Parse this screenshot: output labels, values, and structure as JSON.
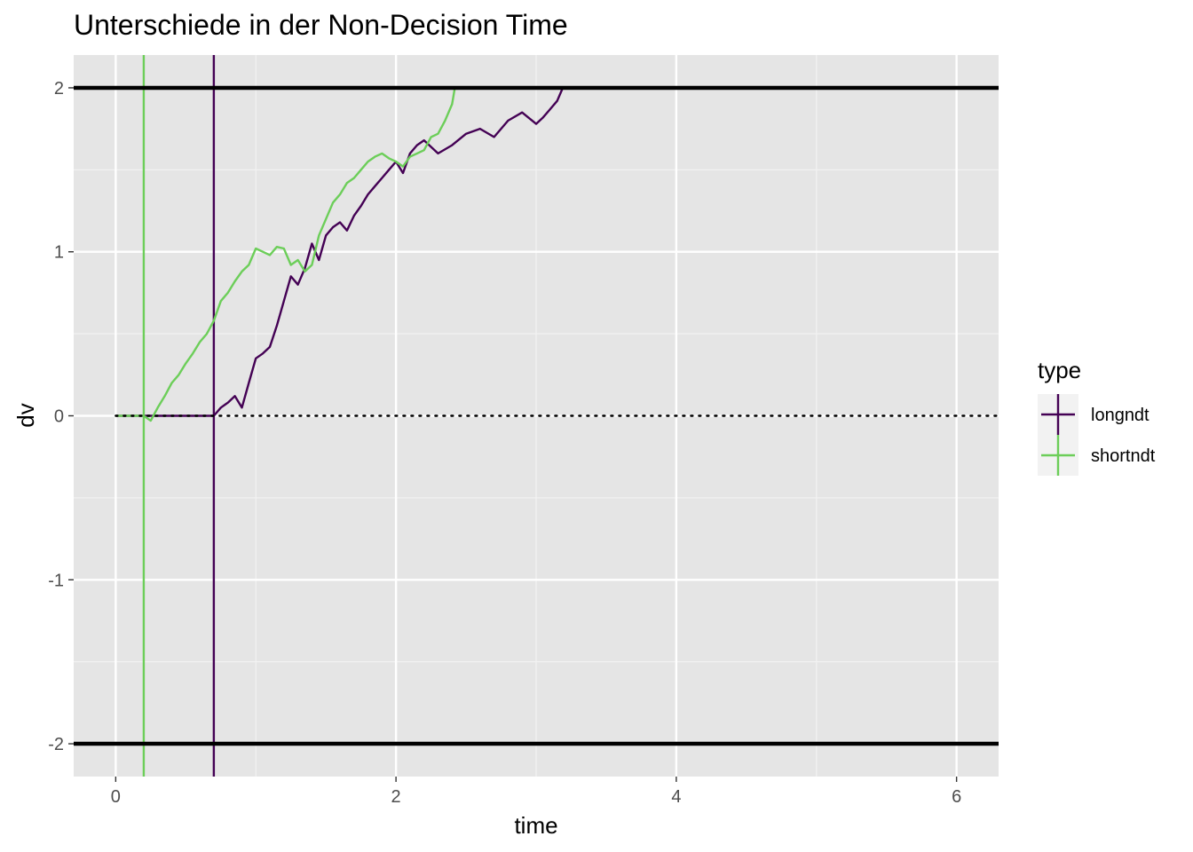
{
  "chart_data": {
    "type": "line",
    "title": "Unterschiede in der Non-Decision Time",
    "xlabel": "time",
    "ylabel": "dv",
    "xlim": [
      -0.3,
      6.3
    ],
    "ylim": [
      -2.2,
      2.2
    ],
    "x_ticks": [
      0,
      2,
      4,
      6
    ],
    "x_tick_labels": [
      "0",
      "2",
      "4",
      "6"
    ],
    "y_ticks": [
      -2,
      -1,
      0,
      1,
      2
    ],
    "y_tick_labels": [
      "-2",
      "-1",
      "0",
      "1",
      "2"
    ],
    "grid": true,
    "background": "#e5e5e5",
    "boundaries": [
      2,
      -2
    ],
    "start_line": 0,
    "legend": {
      "title": "type",
      "placement": "right",
      "entries": [
        "longndt",
        "shortndt"
      ]
    },
    "series": [
      {
        "name": "longndt",
        "color": "#440154",
        "ndt": 0.7,
        "x": [
          0,
          0.7,
          0.75,
          0.8,
          0.85,
          0.9,
          0.95,
          1.0,
          1.05,
          1.1,
          1.15,
          1.2,
          1.25,
          1.3,
          1.35,
          1.4,
          1.45,
          1.5,
          1.55,
          1.6,
          1.65,
          1.7,
          1.75,
          1.8,
          1.85,
          1.9,
          1.95,
          2.0,
          2.05,
          2.1,
          2.15,
          2.2,
          2.3,
          2.4,
          2.5,
          2.6,
          2.7,
          2.8,
          2.9,
          3.0,
          3.05,
          3.1,
          3.15,
          3.19
        ],
        "y": [
          0,
          0,
          0.05,
          0.08,
          0.12,
          0.05,
          0.2,
          0.35,
          0.38,
          0.42,
          0.55,
          0.7,
          0.85,
          0.8,
          0.9,
          1.05,
          0.95,
          1.1,
          1.15,
          1.18,
          1.13,
          1.22,
          1.28,
          1.35,
          1.4,
          1.45,
          1.5,
          1.55,
          1.48,
          1.6,
          1.65,
          1.68,
          1.6,
          1.65,
          1.72,
          1.75,
          1.7,
          1.8,
          1.85,
          1.78,
          1.82,
          1.87,
          1.92,
          2.0
        ]
      },
      {
        "name": "shortndt",
        "color": "#6cce59",
        "ndt": 0.2,
        "x": [
          0,
          0.2,
          0.25,
          0.3,
          0.35,
          0.4,
          0.45,
          0.5,
          0.55,
          0.6,
          0.65,
          0.7,
          0.75,
          0.8,
          0.85,
          0.9,
          0.95,
          1.0,
          1.05,
          1.1,
          1.15,
          1.2,
          1.25,
          1.3,
          1.35,
          1.4,
          1.45,
          1.5,
          1.55,
          1.6,
          1.65,
          1.7,
          1.75,
          1.8,
          1.85,
          1.9,
          1.95,
          2.0,
          2.05,
          2.1,
          2.15,
          2.2,
          2.25,
          2.3,
          2.35,
          2.4,
          2.42
        ],
        "y": [
          0,
          0,
          -0.03,
          0.05,
          0.12,
          0.2,
          0.25,
          0.32,
          0.38,
          0.45,
          0.5,
          0.58,
          0.7,
          0.75,
          0.82,
          0.88,
          0.92,
          1.02,
          1.0,
          0.98,
          1.03,
          1.02,
          0.92,
          0.95,
          0.88,
          0.92,
          1.1,
          1.2,
          1.3,
          1.35,
          1.42,
          1.45,
          1.5,
          1.55,
          1.58,
          1.6,
          1.57,
          1.55,
          1.52,
          1.58,
          1.6,
          1.62,
          1.7,
          1.72,
          1.8,
          1.9,
          2.0
        ]
      }
    ]
  }
}
